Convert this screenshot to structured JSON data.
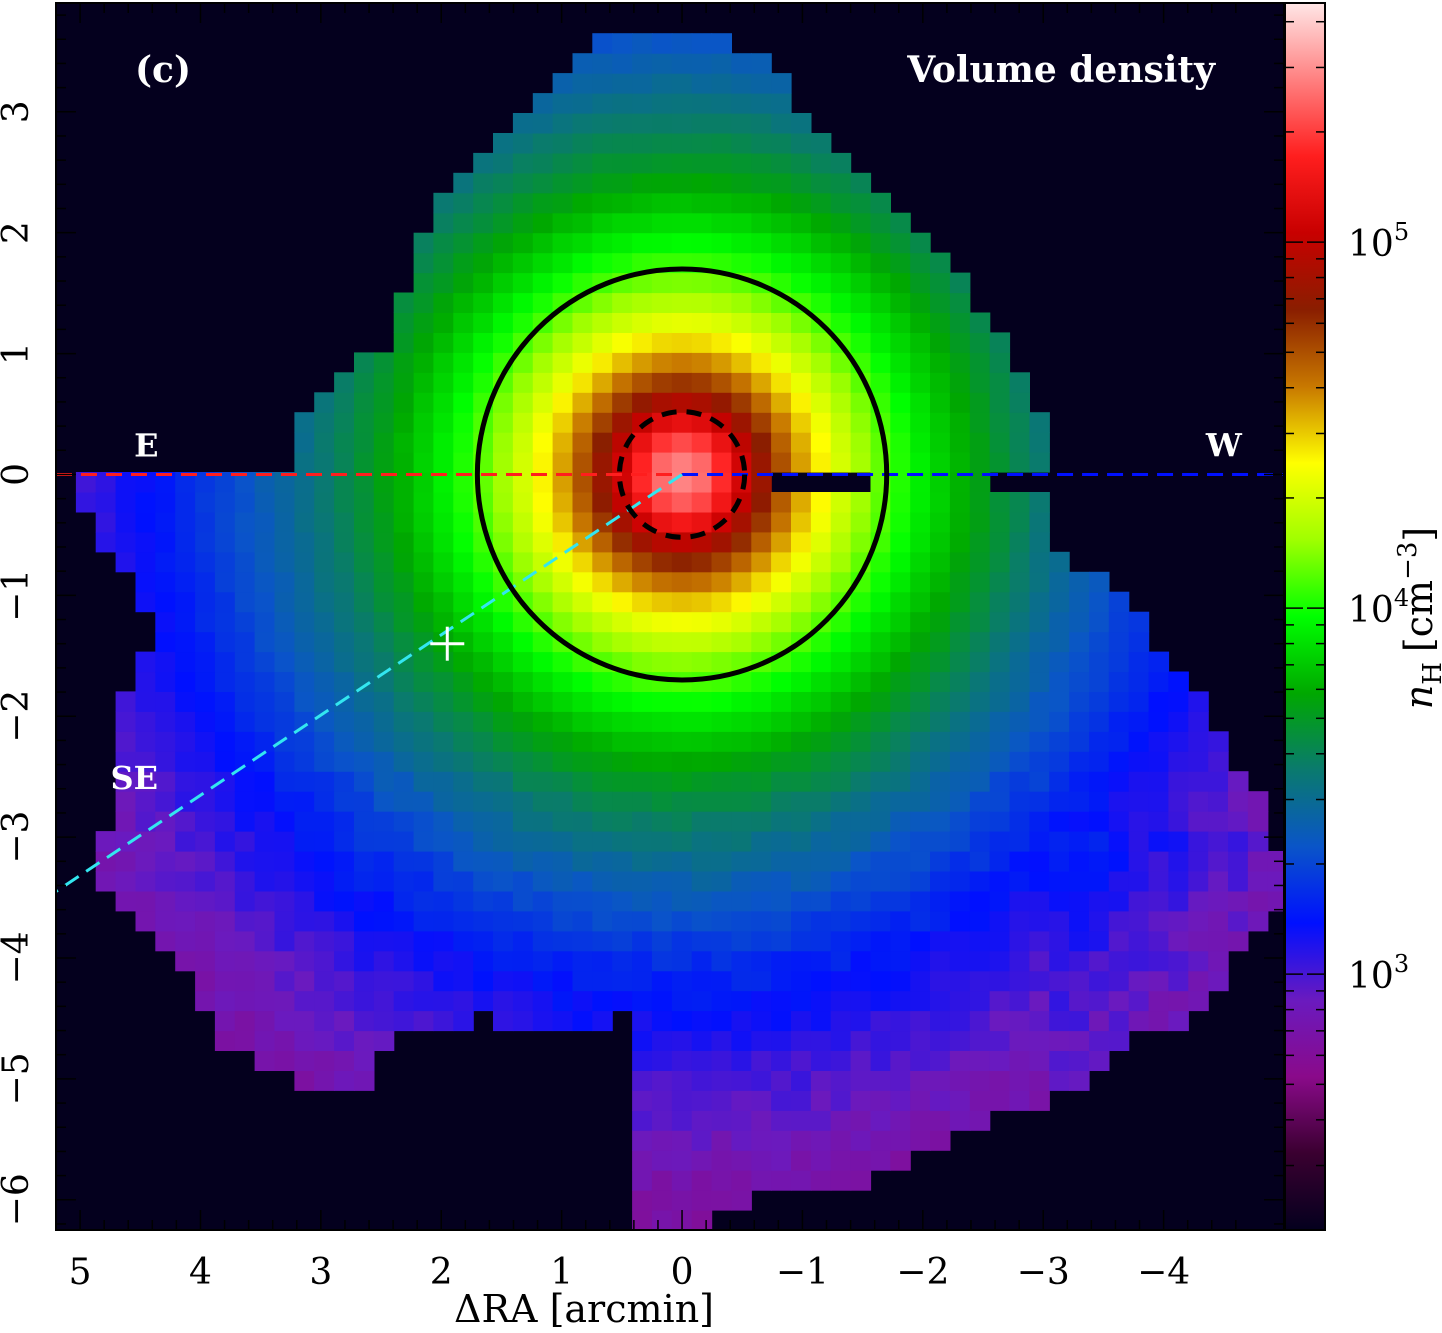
{
  "chart_data": {
    "type": "heatmap",
    "panel_label": "(c)",
    "title": "Volume density",
    "xlabel": "ΔRA [arcmin]",
    "ylabel": "",
    "xlim": [
      5.2,
      -5.0
    ],
    "ylim": [
      -6.25,
      3.9
    ],
    "x_reversed": true,
    "x_ticks": [
      5,
      4,
      3,
      2,
      1,
      0,
      -1,
      -2,
      -3,
      -4
    ],
    "x_tick_labels": [
      "5",
      "4",
      "3",
      "2",
      "1",
      "0",
      "−1",
      "−2",
      "−3",
      "−4"
    ],
    "y_ticks": [
      3,
      2,
      1,
      0,
      -1,
      -2,
      -3,
      -4,
      -5,
      -6
    ],
    "y_tick_labels": [
      "3",
      "2",
      "1",
      "0",
      "−1",
      "−2",
      "−3",
      "−4",
      "−5",
      "−6"
    ],
    "colorbar": {
      "label_main": "n",
      "label_sub": "H",
      "label_units": "[cm",
      "label_exp": "−3",
      "label_close": "]",
      "scale": "log",
      "range": [
        200,
        450000
      ],
      "ticks": [
        {
          "value": 1000,
          "base": "10",
          "exp": "3"
        },
        {
          "value": 10000,
          "base": "10",
          "exp": "4"
        },
        {
          "value": 100000,
          "base": "10",
          "exp": "5"
        }
      ],
      "colormap": [
        "#04001e",
        "#3a0030",
        "#8a0a8a",
        "#6a1abf",
        "#0010ff",
        "#0a55c8",
        "#0a7a6e",
        "#00a800",
        "#00ff00",
        "#a0ff00",
        "#ffff00",
        "#c87800",
        "#8a1e00",
        "#c80000",
        "#ff1e1e",
        "#ff8080",
        "#ffe6e6"
      ]
    },
    "center": {
      "x": 0,
      "y": 0,
      "peak_density": 450000
    },
    "circles": [
      {
        "name": "outer-circle",
        "radius": 1.7,
        "style": "solid",
        "color": "#000000"
      },
      {
        "name": "inner-circle",
        "radius": 0.52,
        "style": "dashed",
        "color": "#000000"
      }
    ],
    "cuts": [
      {
        "name": "E",
        "label": "E",
        "color": "#ff1e1e",
        "from": [
          5.2,
          0
        ],
        "to": [
          0,
          0
        ]
      },
      {
        "name": "W",
        "label": "W",
        "color": "#0010ff",
        "from": [
          0,
          0
        ],
        "to": [
          -5.0,
          0
        ]
      },
      {
        "name": "SE",
        "label": "SE",
        "color": "#33e6f0",
        "from": [
          0,
          0
        ],
        "to": [
          5.2,
          -3.45
        ]
      }
    ],
    "marker": {
      "symbol": "+",
      "x": 1.95,
      "y": -1.4,
      "color": "#ffffff"
    },
    "background_color": "#04001e"
  }
}
